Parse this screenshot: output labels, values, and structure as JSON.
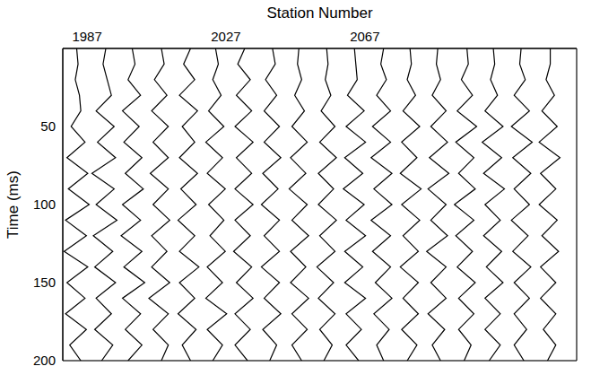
{
  "chart_data": {
    "type": "wiggle",
    "x_label": "Station Number",
    "y_label": "Time (ms)",
    "xlim": [
      1980,
      2128
    ],
    "xticks": [
      1987,
      2027,
      2067
    ],
    "ylim": [
      0,
      200
    ],
    "yticks": [
      50,
      100,
      150,
      200
    ],
    "grid": true,
    "color": "#000000",
    "time": [
      0,
      10,
      20,
      30,
      40,
      50,
      60,
      70,
      80,
      90,
      100,
      110,
      120,
      130,
      140,
      150,
      160,
      170,
      180,
      190,
      200
    ],
    "traces": [
      {
        "station": 1984,
        "values": [
          0,
          0.1,
          -0.1,
          0.2,
          0.3,
          -0.4,
          0.6,
          -0.7,
          0.8,
          -0.6,
          0.9,
          -0.8,
          0.7,
          -0.9,
          0.8,
          -0.7,
          0.6,
          -0.8,
          0.7,
          -0.5,
          0.3
        ]
      },
      {
        "station": 1992,
        "values": [
          0.1,
          -0.1,
          0.2,
          0.5,
          -0.6,
          0.7,
          -0.5,
          0.8,
          -0.9,
          0.7,
          -0.6,
          0.9,
          -0.8,
          0.6,
          -0.7,
          0.8,
          -0.6,
          0.5,
          -0.7,
          0.6,
          -0.2
        ]
      },
      {
        "station": 2000,
        "values": [
          0,
          0.2,
          -0.3,
          0.6,
          -0.7,
          0.5,
          -0.6,
          0.7,
          -0.5,
          0.8,
          -0.7,
          0.6,
          -0.8,
          0.7,
          -0.6,
          0.9,
          -0.7,
          0.6,
          -0.5,
          0.7,
          -0.3
        ]
      },
      {
        "station": 2008,
        "values": [
          0.1,
          0.3,
          -0.4,
          0.5,
          -0.6,
          0.6,
          -0.5,
          0.6,
          -0.7,
          0.6,
          -0.5,
          0.7,
          -0.6,
          0.5,
          -0.6,
          0.7,
          -0.8,
          0.6,
          -0.5,
          0.6,
          0.1
        ]
      },
      {
        "station": 2016,
        "values": [
          0.2,
          -0.3,
          0.5,
          -0.6,
          0.7,
          -0.4,
          0.5,
          -0.6,
          0.7,
          -0.5,
          0.6,
          -0.7,
          0.5,
          -0.6,
          0.8,
          -0.6,
          0.5,
          -0.7,
          0.6,
          -0.4,
          0.2
        ]
      },
      {
        "station": 2024,
        "values": [
          0,
          0.2,
          -0.2,
          0.4,
          -0.5,
          0.6,
          -0.7,
          0.5,
          -0.6,
          0.7,
          -0.5,
          0.6,
          -0.4,
          0.7,
          -0.6,
          0.5,
          -0.7,
          0.8,
          -0.6,
          0.5,
          -0.2
        ]
      },
      {
        "station": 2032,
        "values": [
          0.1,
          -0.4,
          0.5,
          -0.5,
          0.6,
          -0.6,
          0.7,
          -0.5,
          0.6,
          -0.6,
          0.7,
          -0.6,
          0.5,
          -0.7,
          0.6,
          -0.5,
          0.7,
          -0.6,
          0.5,
          -0.6,
          0.3
        ]
      },
      {
        "station": 2040,
        "values": [
          0.1,
          0.3,
          -0.4,
          0.4,
          -0.5,
          0.6,
          -0.5,
          0.7,
          -0.6,
          0.5,
          -0.7,
          0.6,
          -0.5,
          0.6,
          -0.7,
          0.6,
          -0.5,
          0.7,
          -0.6,
          0.4,
          -0.1
        ]
      },
      {
        "station": 2048,
        "values": [
          0,
          -0.1,
          0.2,
          -0.3,
          0.4,
          -0.5,
          0.6,
          -0.6,
          0.5,
          -0.7,
          0.6,
          -0.5,
          0.7,
          -0.6,
          0.5,
          -0.6,
          0.7,
          -0.5,
          0.6,
          -0.5,
          0.2
        ]
      },
      {
        "station": 2056,
        "values": [
          0,
          0.1,
          -0.1,
          0.3,
          -0.4,
          0.6,
          -0.5,
          0.7,
          -0.6,
          0.5,
          -0.6,
          0.7,
          -0.5,
          0.6,
          -0.7,
          0.5,
          -0.6,
          0.6,
          -0.5,
          0.4,
          -0.2
        ]
      },
      {
        "station": 2064,
        "values": [
          0,
          0.1,
          0.2,
          -0.5,
          0.7,
          -0.6,
          0.8,
          -0.7,
          0.6,
          -0.8,
          0.7,
          -0.6,
          0.8,
          -0.7,
          0.6,
          -0.7,
          0.8,
          -0.6,
          0.5,
          -0.6,
          0.3
        ]
      },
      {
        "station": 2072,
        "values": [
          0.1,
          -0.1,
          0.3,
          -0.4,
          0.6,
          -0.7,
          0.6,
          -0.8,
          0.7,
          -0.6,
          0.7,
          -0.8,
          0.6,
          -0.7,
          0.6,
          -0.5,
          0.7,
          -0.6,
          0.5,
          -0.4,
          0.1
        ]
      },
      {
        "station": 2080,
        "values": [
          0,
          0.1,
          -0.2,
          0.4,
          -0.5,
          0.7,
          -0.6,
          0.5,
          -0.7,
          0.8,
          -0.6,
          0.7,
          -0.5,
          0.6,
          -0.7,
          0.6,
          -0.5,
          0.6,
          -0.6,
          0.5,
          -0.2
        ]
      },
      {
        "station": 2088,
        "values": [
          0,
          -0.1,
          0.2,
          -0.4,
          0.6,
          -0.5,
          0.7,
          -0.6,
          0.8,
          -0.7,
          0.6,
          -0.5,
          0.7,
          -0.8,
          0.6,
          -0.5,
          0.6,
          -0.7,
          0.5,
          -0.4,
          0.2
        ]
      },
      {
        "station": 2096,
        "values": [
          0.1,
          0.2,
          -0.3,
          0.5,
          -0.6,
          0.8,
          -0.7,
          0.6,
          -0.5,
          0.7,
          -0.8,
          0.6,
          -0.7,
          0.5,
          -0.6,
          0.7,
          -0.5,
          0.6,
          -0.5,
          0.4,
          -0.1
        ]
      },
      {
        "station": 2104,
        "values": [
          0,
          0.1,
          -0.2,
          0.3,
          -0.6,
          0.7,
          -0.8,
          0.6,
          -0.7,
          0.8,
          -0.6,
          0.5,
          -0.7,
          0.6,
          -0.5,
          0.7,
          -0.6,
          0.5,
          -0.6,
          0.5,
          -0.3
        ]
      },
      {
        "station": 2112,
        "values": [
          0,
          -0.1,
          0.3,
          -0.5,
          0.6,
          -0.7,
          0.8,
          -0.6,
          0.7,
          -0.5,
          0.6,
          -0.7,
          0.5,
          -0.6,
          0.7,
          -0.5,
          0.6,
          -0.5,
          0.4,
          -0.5,
          0.2
        ]
      },
      {
        "station": 2120,
        "values": [
          0.1,
          0.1,
          -0.2,
          0.4,
          -0.5,
          0.6,
          -0.7,
          0.8,
          -0.6,
          0.5,
          -0.7,
          0.6,
          -0.5,
          0.7,
          -0.6,
          0.5,
          -0.6,
          0.5,
          -0.4,
          0.5,
          -0.1
        ]
      }
    ]
  }
}
